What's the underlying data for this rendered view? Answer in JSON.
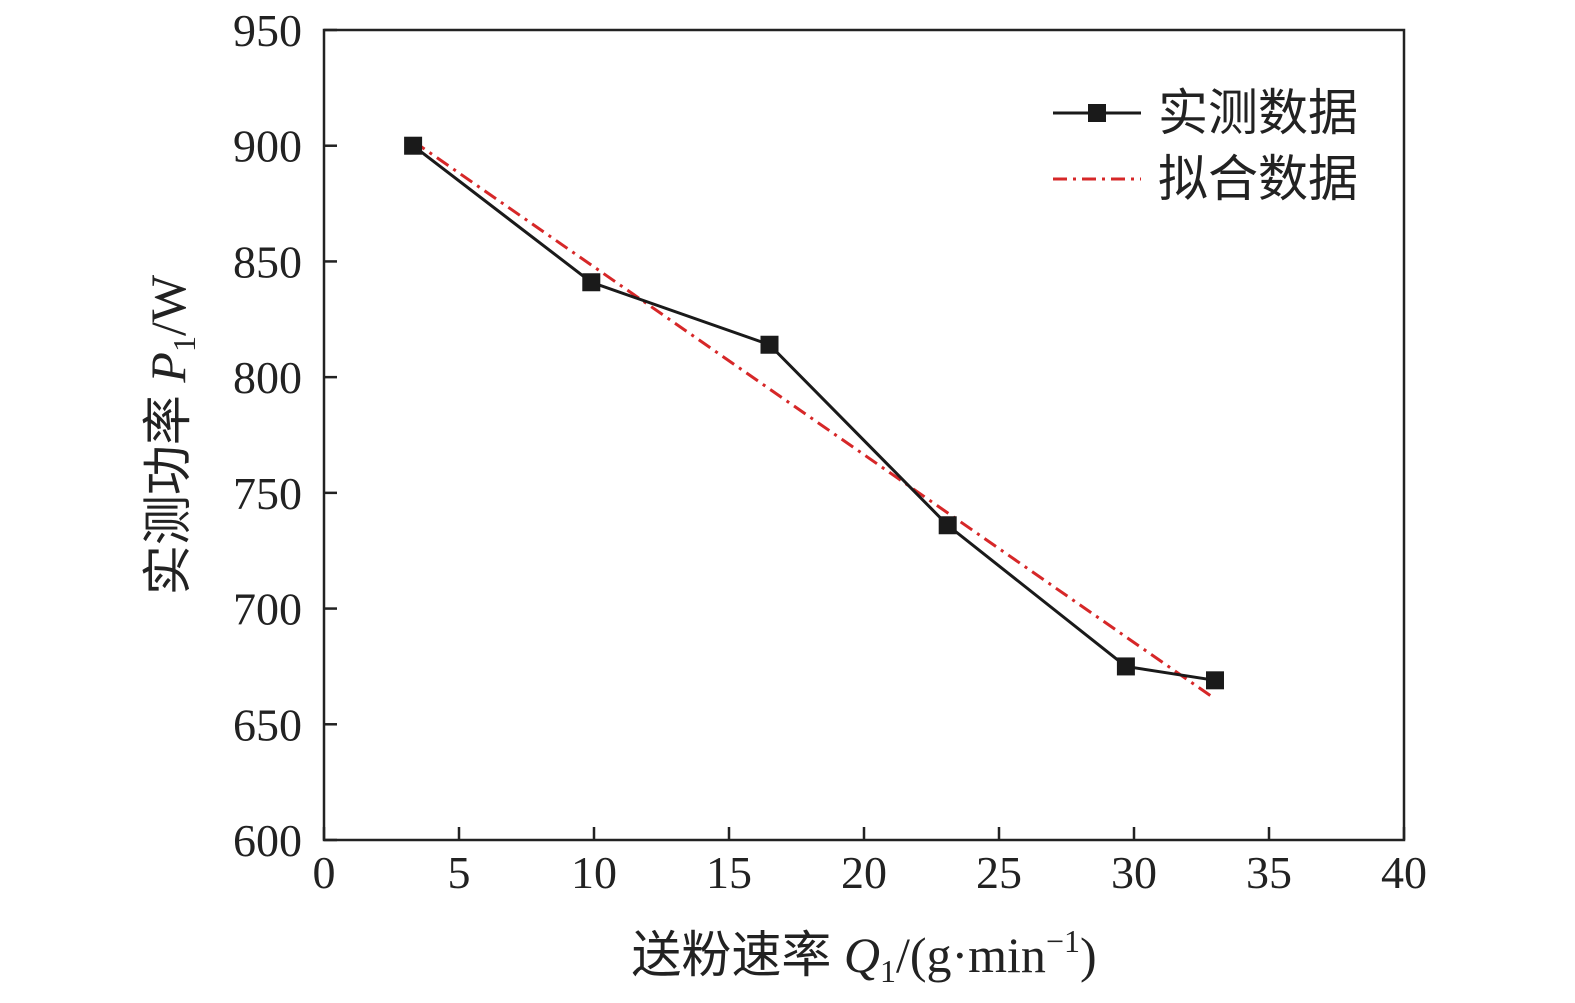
{
  "chart_data": {
    "type": "line",
    "title": "",
    "xlabel": {
      "prefix": "送粉速率 ",
      "symbol": "Q",
      "subscript": "1",
      "unit_open": "/(g·min",
      "unit_sup": "−1",
      "unit_close": ")"
    },
    "ylabel": {
      "prefix": "实测功率 ",
      "symbol": "P",
      "subscript": "1",
      "unit": "/W"
    },
    "xlim": [
      0,
      40
    ],
    "ylim": [
      600,
      950
    ],
    "xticks": [
      0,
      5,
      10,
      15,
      20,
      25,
      30,
      35,
      40
    ],
    "yticks": [
      600,
      650,
      700,
      750,
      800,
      850,
      900,
      950
    ],
    "grid": false,
    "legend_position": "top-right",
    "series": [
      {
        "name": "实测数据",
        "style": "solid-square-markers",
        "color": "#1a1a1a",
        "x": [
          3.3,
          9.9,
          16.5,
          23.1,
          29.7,
          33.0
        ],
        "y": [
          900,
          841,
          814,
          736,
          675,
          669
        ]
      },
      {
        "name": "拟合数据",
        "style": "dash-dot",
        "color": "#d62728",
        "x": [
          3.3,
          33.0
        ],
        "y": [
          902,
          661
        ]
      }
    ]
  }
}
